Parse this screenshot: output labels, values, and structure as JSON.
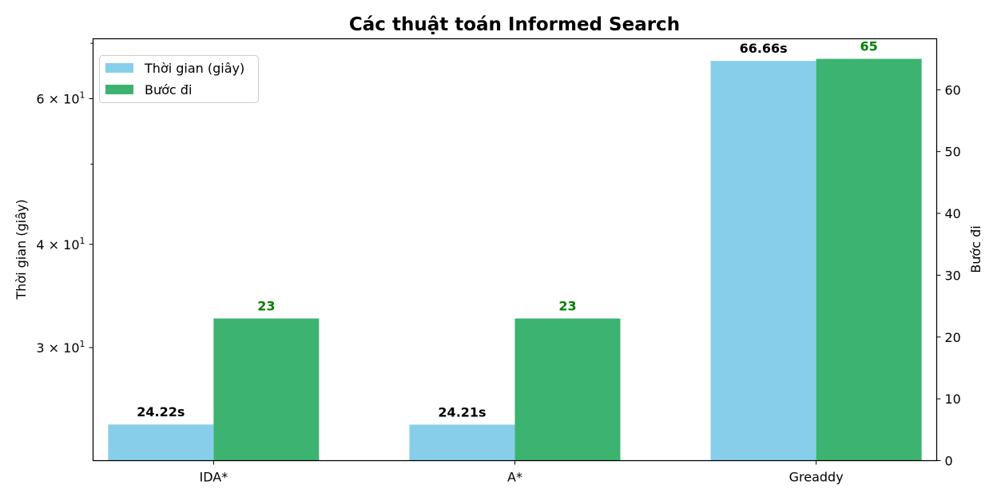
{
  "chart_data": {
    "type": "bar",
    "title": "Các thuật toán Informed Search",
    "categories": [
      "IDA*",
      "A*",
      "Greaddy"
    ],
    "series": [
      {
        "name": "Thời gian (giây)",
        "axis": "left",
        "scale": "log",
        "values": [
          24.22,
          24.21,
          66.66
        ],
        "labels": [
          "24.22s",
          "24.21s",
          "66.66s"
        ],
        "color": "#87ceeb",
        "label_color": "#000000"
      },
      {
        "name": "Bước đi",
        "axis": "right",
        "scale": "linear",
        "values": [
          23,
          23,
          65
        ],
        "labels": [
          "23",
          "23",
          "65"
        ],
        "color": "#3cb371",
        "label_color": "#008000"
      }
    ],
    "ylabel_left": "Thời gian (giây)",
    "ylabel_right": "Bước đi",
    "ylim_left": [
      21.9,
      70.9
    ],
    "ylim_right": [
      0,
      68.25
    ],
    "left_ticks": [
      {
        "value": 30,
        "label_base": "3",
        "label_exp": "1"
      },
      {
        "value": 40,
        "label_base": "4",
        "label_exp": "1"
      },
      {
        "value": 60,
        "label_base": "6",
        "label_exp": "1"
      }
    ],
    "left_minor_ticks": [
      50,
      70
    ],
    "right_ticks": [
      0,
      10,
      20,
      30,
      40,
      50,
      60
    ],
    "legend_position": "top-left"
  }
}
